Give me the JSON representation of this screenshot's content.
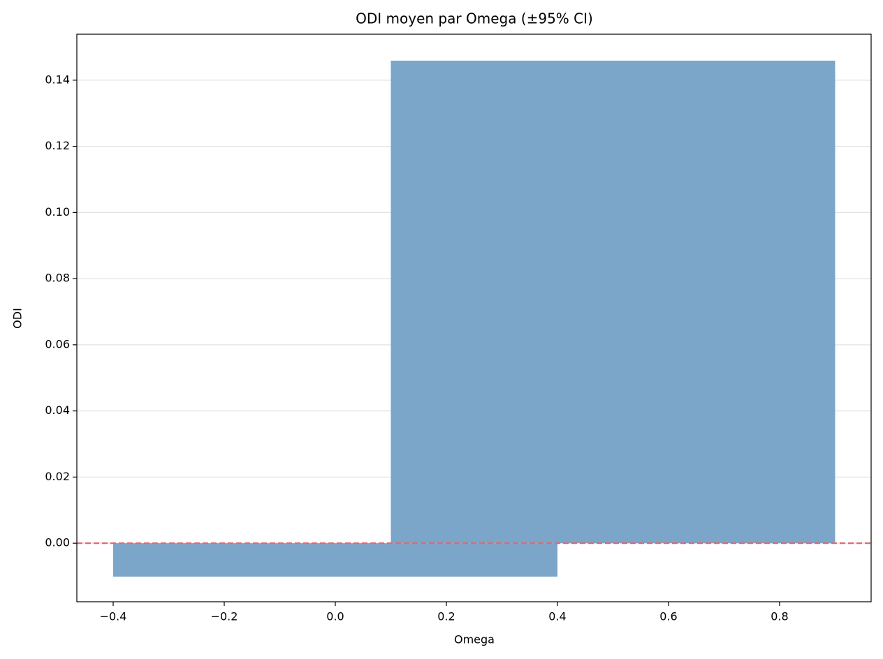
{
  "chart_data": {
    "type": "bar",
    "title": "ODI moyen par Omega (±95% CI)",
    "x_label": "Omega",
    "y_label": "ODI",
    "x": [
      0,
      0.5
    ],
    "values": [
      -0.0101,
      0.1459
    ],
    "bar_width": 0.8,
    "color": "#7ba6c9",
    "xlim": [
      -0.4654,
      0.9648
    ],
    "ylim": [
      -0.0177,
      0.1539
    ],
    "xticks": [
      {
        "value": -0.4,
        "label": "−0.4"
      },
      {
        "value": -0.2,
        "label": "−0.2"
      },
      {
        "value": 0,
        "label": "0.0"
      },
      0.2,
      0.4,
      0.6,
      0.8
    ],
    "yticks": [
      {
        "value": 0,
        "label": "0.00"
      },
      0.02,
      0.04,
      0.06,
      0.08,
      {
        "value": 0.1,
        "label": "0.10"
      },
      0.12,
      0.14
    ],
    "grid": "y",
    "hline": {
      "value": 0,
      "color": "#e8666b"
    }
  }
}
